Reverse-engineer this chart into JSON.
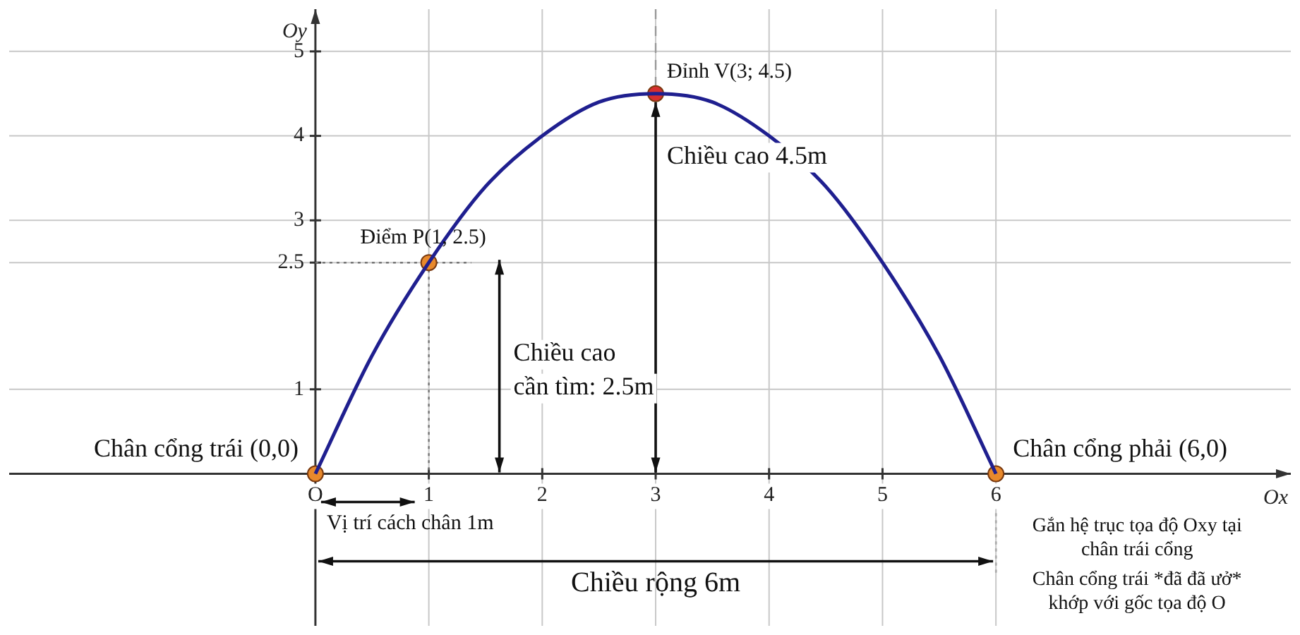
{
  "chart_data": {
    "type": "line",
    "xlabel": "Ox",
    "ylabel": "Oy",
    "series": [
      {
        "color": "#1f1f8f",
        "x": [
          0,
          0.5,
          1,
          1.5,
          2,
          2.5,
          3,
          3.5,
          4,
          4.5,
          5,
          5.5,
          6
        ],
        "values": [
          0,
          1.4,
          2.5,
          3.4,
          4,
          4.4,
          4.5,
          4.4,
          4,
          3.4,
          2.5,
          1.4,
          0
        ]
      },
      {
        "type": "scatter",
        "marker": "circle",
        "colors": [
          "#e8892c",
          "#e8892c",
          "#d62f2f",
          "#e8892c"
        ],
        "x": [
          0,
          1,
          3,
          6
        ],
        "values": [
          0,
          2.5,
          4.5,
          0
        ]
      }
    ],
    "xlim": [
      -2.7,
      8.6
    ],
    "ylim": [
      -1.8,
      5.5
    ],
    "xticks": [
      {
        "value": 0,
        "label": "O"
      },
      1,
      2,
      3,
      4,
      5,
      6
    ],
    "yticks": [
      1,
      2.5,
      3,
      4,
      5
    ],
    "grid": true,
    "ref_lines": [
      {
        "axis": "x",
        "value": 6,
        "line_style": "dotted",
        "color": "#aaaaaa"
      }
    ],
    "annotations": [
      {
        "text": "Đỉnh V(3; 4.5)",
        "x": 3,
        "y": 4.5
      },
      {
        "text": "Điểm P(1, 2.5)",
        "x": 1,
        "y": 2.5
      },
      {
        "text": "Chân cổng trái (0,0)",
        "x": 0,
        "y": 0
      },
      {
        "text": "Chân cổng phải (6,0)",
        "x": 6,
        "y": 0
      },
      "Chiều cao 4.5m",
      "Chiều cao cần tìm: 2.5m",
      "Vị trí cách chân 1m",
      "Chiều rộng 6m",
      "Gắn hệ trục tọa độ Oxy tại chân trái cổng",
      "Chân cổng trái *đã đã ưở* khớp với gốc tọa độ O"
    ]
  }
}
